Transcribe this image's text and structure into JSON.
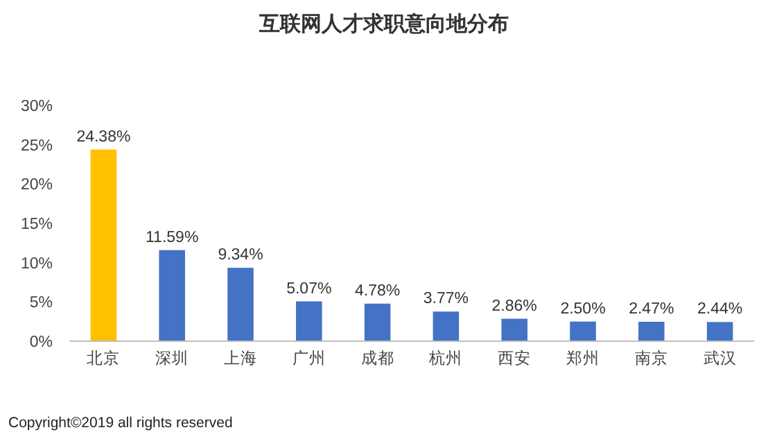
{
  "chart_data": {
    "type": "bar",
    "title": "互联网人才求职意向地分布",
    "categories": [
      "北京",
      "深圳",
      "上海",
      "广州",
      "成都",
      "杭州",
      "西安",
      "郑州",
      "南京",
      "武汉"
    ],
    "values": [
      24.38,
      11.59,
      9.34,
      5.07,
      4.78,
      3.77,
      2.86,
      2.5,
      2.47,
      2.44
    ],
    "colors": [
      "#ffc000",
      "#4472c4",
      "#4472c4",
      "#4472c4",
      "#4472c4",
      "#4472c4",
      "#4472c4",
      "#4472c4",
      "#4472c4",
      "#4472c4"
    ],
    "value_labels": [
      "24.38%",
      "11.59%",
      "9.34%",
      "5.07%",
      "4.78%",
      "3.77%",
      "2.86%",
      "2.50%",
      "2.47%",
      "2.44%"
    ],
    "ylim": [
      0,
      30
    ],
    "yticks": [
      {
        "value": 0,
        "label": "0%"
      },
      {
        "value": 5,
        "label": "5%"
      },
      {
        "value": 10,
        "label": "10%"
      },
      {
        "value": 15,
        "label": "15%"
      },
      {
        "value": 20,
        "label": "20%"
      },
      {
        "value": 25,
        "label": "25%"
      },
      {
        "value": 30,
        "label": "30%"
      }
    ],
    "grid": false,
    "annotations": [
      "Copyright©2019 all rights reserved"
    ]
  }
}
